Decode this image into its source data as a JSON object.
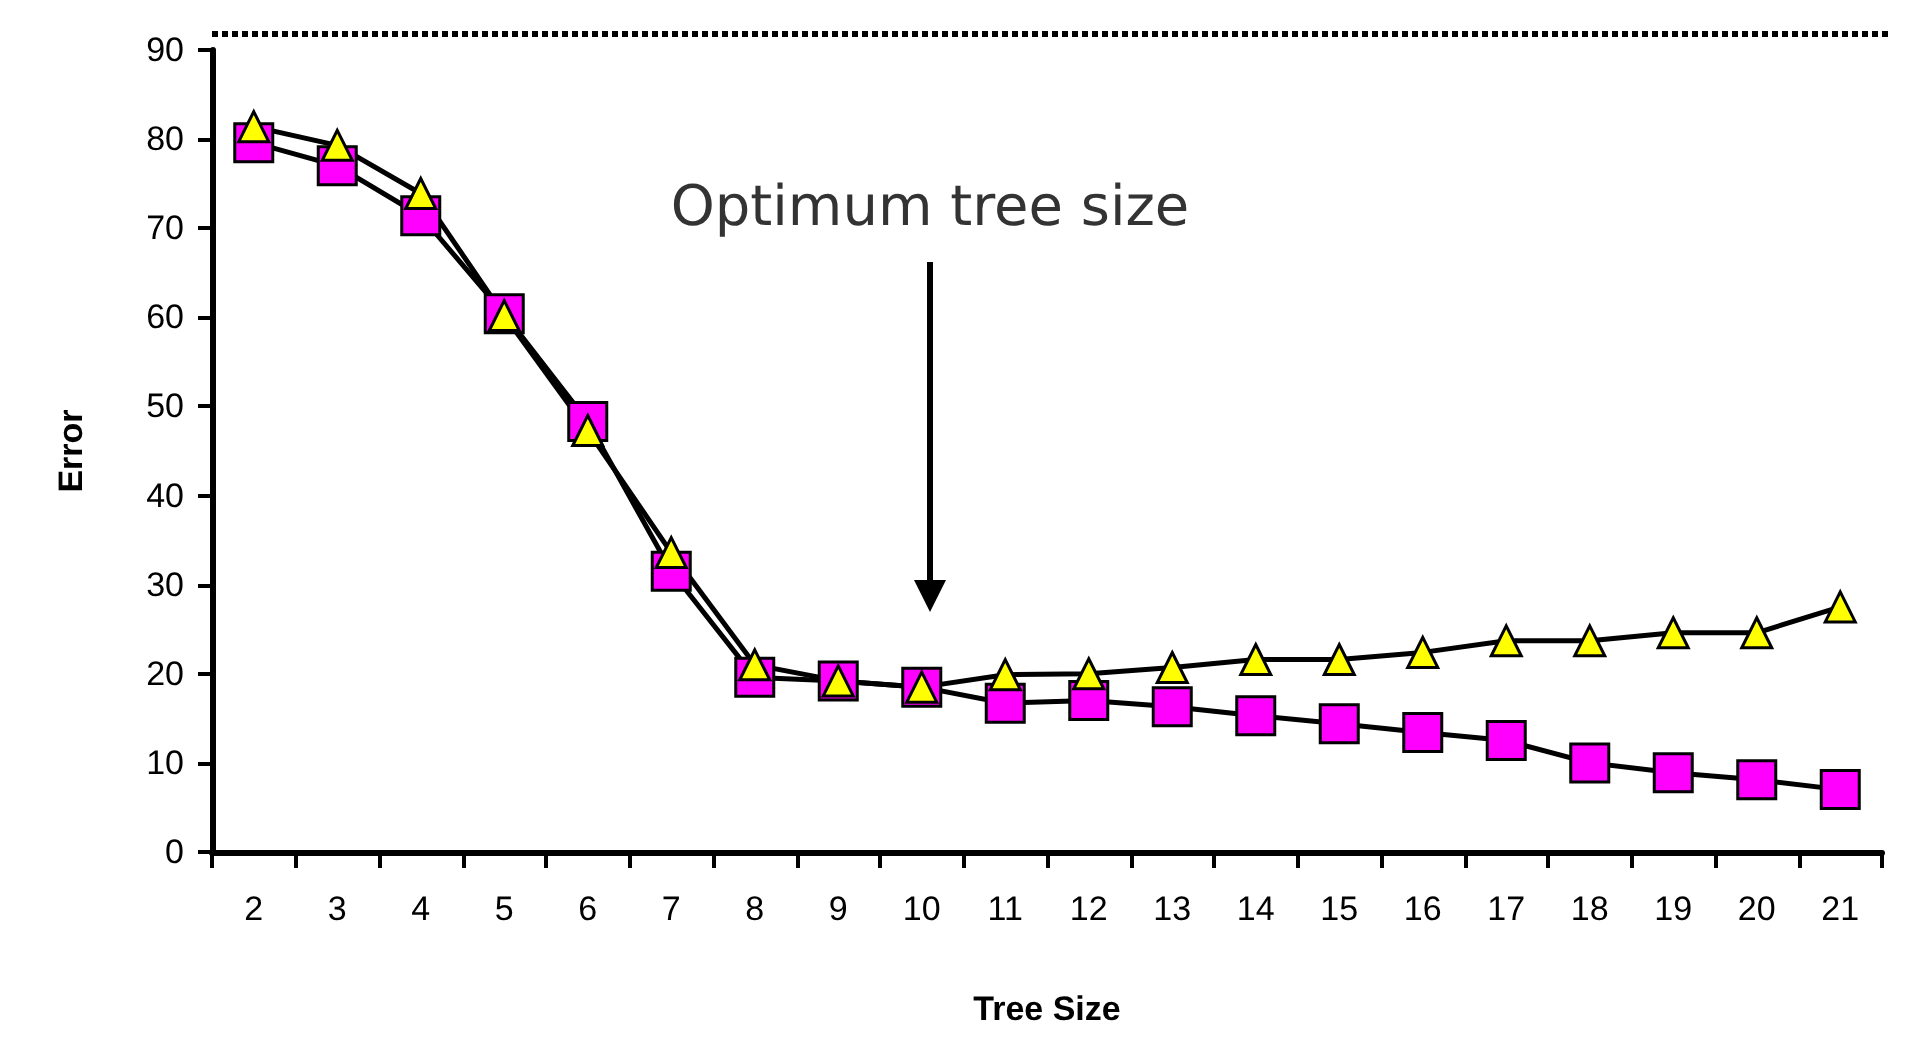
{
  "chart_data": {
    "type": "line",
    "xlabel": "Tree Size",
    "ylabel": "Error",
    "categories": [
      "2",
      "3",
      "4",
      "5",
      "6",
      "7",
      "8",
      "9",
      "10",
      "11",
      "12",
      "13",
      "14",
      "15",
      "16",
      "17",
      "18",
      "19",
      "20",
      "21"
    ],
    "series": [
      {
        "color": "#ff00ff",
        "marker": "square",
        "values": [
          79.6,
          77,
          71.4,
          60.4,
          48.3,
          31.5,
          19.6,
          19.2,
          18.5,
          16.7,
          17,
          16.3,
          15.3,
          14.4,
          13.4,
          12.5,
          10,
          8.9,
          8.1,
          7
        ]
      },
      {
        "color": "#ffff00",
        "marker": "triangle",
        "values": [
          81.4,
          79.3,
          73.9,
          60.2,
          47.3,
          33.6,
          21,
          19.2,
          18.5,
          19.9,
          20,
          20.7,
          21.6,
          21.6,
          22.4,
          23.7,
          23.7,
          24.6,
          24.6,
          27.5
        ]
      }
    ],
    "ylim": [
      0,
      90
    ],
    "yticks": [
      0,
      10,
      20,
      30,
      40,
      50,
      60,
      70,
      80,
      90
    ],
    "grid": false,
    "annotations": [
      "Optimum tree size"
    ]
  }
}
